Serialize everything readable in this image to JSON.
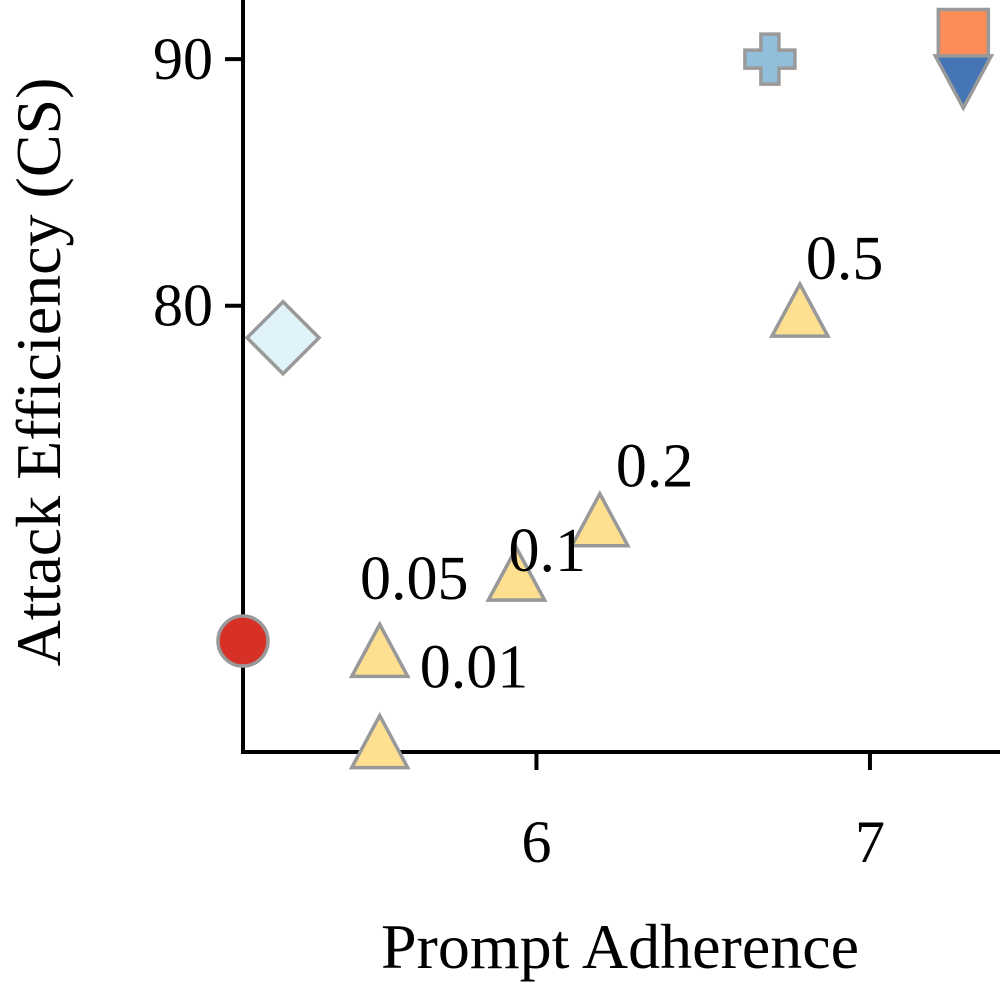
{
  "chart_data": {
    "type": "scatter",
    "title": "",
    "xlabel": "Prompt Adherence",
    "ylabel": "Attack Efficiency (CS)",
    "xlim": [
      5.12,
      7.39
    ],
    "ylim": [
      61.9,
      92.4
    ],
    "x_ticks": [
      {
        "value": 6,
        "label": "6"
      },
      {
        "value": 7,
        "label": "7"
      }
    ],
    "y_ticks": [
      {
        "value": 80,
        "label": "80"
      },
      {
        "value": 90,
        "label": "90"
      }
    ],
    "grid": false,
    "series": [
      {
        "marker": "circle",
        "color": "#d73027",
        "points": [
          {
            "x": 5.12,
            "y": 66.4
          }
        ]
      },
      {
        "marker": "diamond",
        "color": "#e0f3f8",
        "points": [
          {
            "x": 5.24,
            "y": 78.7
          }
        ]
      },
      {
        "marker": "triangle-up",
        "color": "#fee090",
        "points": [
          {
            "x": 5.53,
            "y": 62.2,
            "label": ""
          },
          {
            "x": 5.53,
            "y": 65.9,
            "label": "0.01"
          },
          {
            "x": 5.94,
            "y": 69.0,
            "label": "0.05"
          },
          {
            "x": 5.94,
            "y": 69.0,
            "label": "0.1"
          },
          {
            "x": 6.19,
            "y": 71.2,
            "label": "0.2"
          },
          {
            "x": 6.79,
            "y": 79.7,
            "label": "0.5"
          }
        ]
      },
      {
        "marker": "plus",
        "color": "#91bfdb",
        "points": [
          {
            "x": 6.7,
            "y": 90.0
          }
        ]
      },
      {
        "marker": "square",
        "color": "#fc8d59",
        "points": [
          {
            "x": 7.28,
            "y": 91.0
          }
        ]
      },
      {
        "marker": "triangle-down",
        "color": "#4575b4",
        "points": [
          {
            "x": 7.28,
            "y": 89.2
          }
        ]
      }
    ]
  }
}
